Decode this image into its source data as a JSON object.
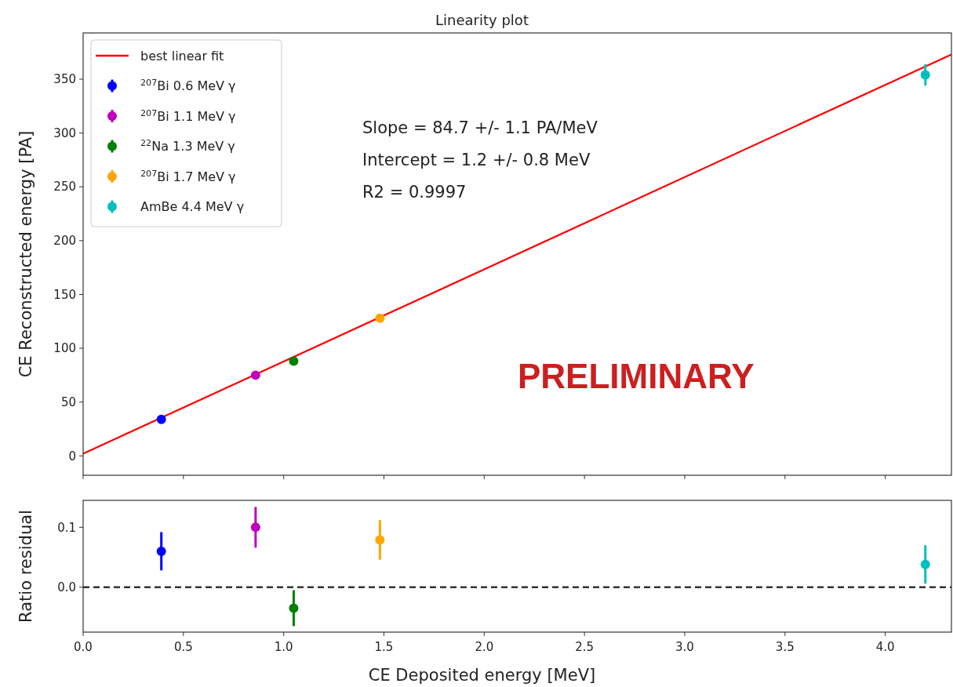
{
  "chart_data": [
    {
      "type": "scatter",
      "title": "Linearity plot",
      "ylabel": "CE Reconstructed energy [PA]",
      "xlim": [
        0,
        4.33
      ],
      "ylim": [
        -18,
        393
      ],
      "yticks": [
        0,
        50,
        100,
        150,
        200,
        250,
        300,
        350
      ],
      "xticks": [
        {
          "value": 0,
          "label": null
        },
        {
          "value": 0.5,
          "label": null
        },
        {
          "value": 1,
          "label": null
        },
        {
          "value": 1.5,
          "label": null
        },
        {
          "value": 2,
          "label": null
        },
        {
          "value": 2.5,
          "label": null
        },
        {
          "value": 3,
          "label": null
        },
        {
          "value": 3.5,
          "label": null
        },
        {
          "value": 4,
          "label": null
        }
      ],
      "tick_labels": "y",
      "legend": "top left",
      "grid": false,
      "annotations": [
        "Slope = 84.7 +/- 1.1 PA/MeV",
        "Intercept = 1.2 +/- 0.8 MeV",
        "R2 = 0.9997",
        "PRELIMINARY"
      ],
      "series": [
        {
          "type": "line",
          "name": "best linear fit",
          "color": "#ff0000",
          "x": [
            0,
            4.33
          ],
          "values": [
            2,
            373
          ],
          "line_style": "solid"
        },
        {
          "name": "$^{207}$Bi 0.6 MeV γ",
          "color": "#0000ff",
          "x": [
            0.39
          ],
          "values": [
            34
          ],
          "marker": "circle"
        },
        {
          "name": "$^{207}$Bi 1.1 MeV γ",
          "color": "#bf00bf",
          "x": [
            0.86
          ],
          "values": [
            75
          ],
          "marker": "circle"
        },
        {
          "name": "$^{22}$Na 1.3 MeV γ",
          "color": "#008000",
          "x": [
            1.05
          ],
          "values": [
            88
          ],
          "marker": "circle"
        },
        {
          "name": "$^{207}$Bi 1.7 MeV γ",
          "color": "#ffa500",
          "x": [
            1.48
          ],
          "values": [
            128
          ],
          "marker": "circle"
        },
        {
          "name": "AmBe 4.4 MeV γ",
          "color": "#00bfbf",
          "x": [
            4.2
          ],
          "values": [
            354
          ],
          "errors": [
            10
          ],
          "marker": "circle"
        }
      ]
    },
    {
      "type": "scatter",
      "xlabel": "CE Deposited energy [MeV]",
      "ylabel": "Ratio residual",
      "xlim": [
        0,
        4.33
      ],
      "ylim": [
        -0.075,
        0.145
      ],
      "yticks": [
        {
          "value": 0,
          "label": "0.0"
        },
        {
          "value": 0.1,
          "label": "0.1"
        }
      ],
      "xticks": [
        {
          "value": 0,
          "label": "0.0"
        },
        {
          "value": 0.5,
          "label": "0.5"
        },
        {
          "value": 1,
          "label": "1.0"
        },
        {
          "value": 1.5,
          "label": "1.5"
        },
        {
          "value": 2,
          "label": "2.0"
        },
        {
          "value": 2.5,
          "label": "2.5"
        },
        {
          "value": 3,
          "label": "3.0"
        },
        {
          "value": 3.5,
          "label": "3.5"
        },
        {
          "value": 4,
          "label": "4.0"
        }
      ],
      "marker": "circle",
      "grid": false,
      "ref_lines": [
        {
          "axis": "y",
          "value": 0,
          "color": "#333333",
          "line_style": "dashed"
        }
      ],
      "series": [
        {
          "color": "#0000ff",
          "x": [
            0.39
          ],
          "values": [
            0.06
          ],
          "errors": [
            0.032
          ]
        },
        {
          "color": "#bf00bf",
          "x": [
            0.86
          ],
          "values": [
            0.1
          ],
          "errors": [
            0.034
          ]
        },
        {
          "color": "#008000",
          "x": [
            1.05
          ],
          "values": [
            -0.035
          ],
          "errors": [
            0.03
          ]
        },
        {
          "color": "#ffa500",
          "x": [
            1.48
          ],
          "values": [
            0.079
          ],
          "errors": [
            0.033
          ]
        },
        {
          "color": "#00bfbf",
          "x": [
            4.2
          ],
          "values": [
            0.038
          ],
          "errors": [
            0.032
          ]
        }
      ]
    }
  ]
}
